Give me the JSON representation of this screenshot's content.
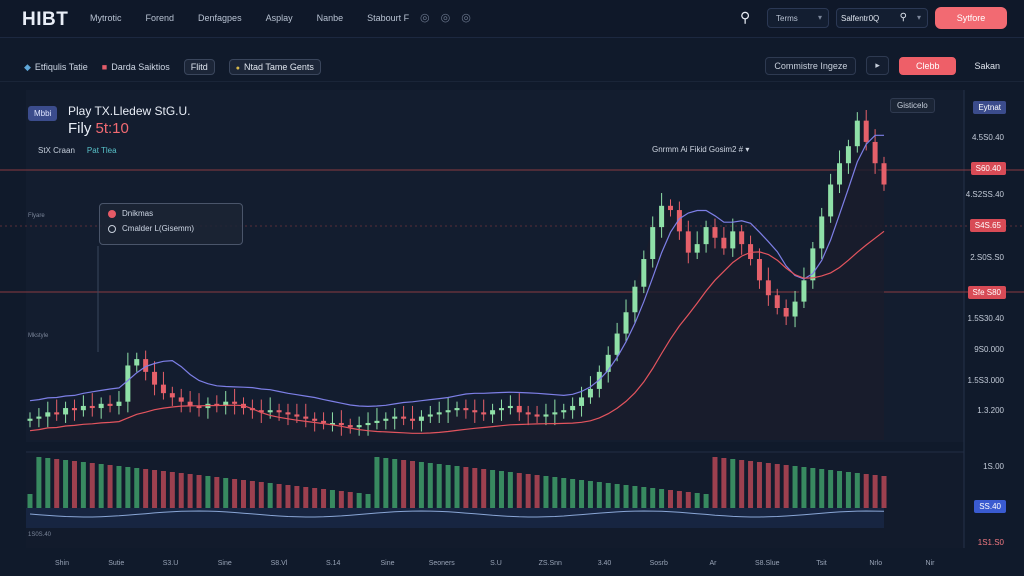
{
  "app": {
    "logo": "HIBT"
  },
  "nav": [
    "Mytrotic",
    "Forend",
    "Denfagpes",
    "Asplay",
    "Nanbe",
    "Stabourt F"
  ],
  "nav_icons": "◎ ◎ ◎",
  "header": {
    "terms_label": "Terms",
    "search_value": "Salfentr0Q",
    "cta_label": "Sytfore"
  },
  "toolbar": {
    "item1": "Etfiqulis Tatie",
    "item2": "Darda Saiktios",
    "chip1": "Flitd",
    "chip2": "Ntad Tame Gents",
    "right_select": "Commistre Ingeze",
    "right_play": "▸",
    "right_red": "Clebb",
    "right_plain": "Sakan"
  },
  "symbol": {
    "badge": "Mbbi",
    "name": "Play TX.Lledew StG.U.",
    "price_prefix": "Fily",
    "price_value": "5t:10",
    "sub_a": "StX Craan",
    "sub_b": "Pat Tlea"
  },
  "legend": {
    "line1": "Dnikmas",
    "line2": "Cmalder L(Gisemm)"
  },
  "annotation": "Gnrmm Ai Fikid Gosim2 # ▾",
  "top_tag": "Gisticelo",
  "axis": {
    "top_badge": "Eytnat",
    "labels": [
      "4.5S0.40",
      "4.S2SS.40",
      "2.S0S.S0",
      "1.5S30.40",
      "9S0.000",
      "1.5S3.000",
      "1.3.200",
      "1S.00"
    ],
    "red_badges": [
      "S60.40",
      "S4S.65",
      "Sfe S80"
    ],
    "blue_badge": "SS.40",
    "bottom_red": "1S1.S0"
  },
  "left_labels": [
    "Flyare",
    "Mkstyle",
    "1S0S.40"
  ],
  "x_labels": [
    "Shin",
    "Sutie",
    "S3.U",
    "Sine",
    "S8.Vl",
    "S.14",
    "Sine",
    "Seoners",
    "S.U",
    "ZS.Snn",
    "3.40",
    "Sosrb",
    "Ar",
    "S8.Slue",
    "Tsit",
    "Nrlo",
    "Nir"
  ],
  "colors": {
    "up": "#8fe0a8",
    "down": "#e5606a",
    "ma_blue": "#7d7fe6",
    "ma_red": "#e3545e",
    "accent": "#f26a72"
  },
  "chart_data": {
    "type": "candlestick",
    "series": [
      {
        "name": "price",
        "values": [
          30,
          31,
          33,
          32,
          35,
          34,
          36,
          35,
          37,
          36,
          38,
          55,
          58,
          52,
          46,
          42,
          40,
          38,
          36,
          35,
          37,
          36,
          38,
          37,
          35,
          34,
          33,
          34,
          33,
          32,
          31,
          30,
          29,
          28,
          28,
          27,
          26,
          27,
          28,
          29,
          30,
          31,
          30,
          29,
          31,
          32,
          33,
          34,
          35,
          34,
          33,
          32,
          34,
          35,
          36,
          33,
          32,
          31,
          32,
          33,
          34,
          36,
          40,
          44,
          52,
          60,
          70,
          80,
          92,
          105,
          120,
          130,
          128,
          118,
          108,
          112,
          120,
          115,
          110,
          118,
          112,
          105,
          95,
          88,
          82,
          78,
          85,
          95,
          110,
          125,
          140,
          150,
          158,
          170,
          160,
          150,
          140
        ]
      }
    ]
  }
}
